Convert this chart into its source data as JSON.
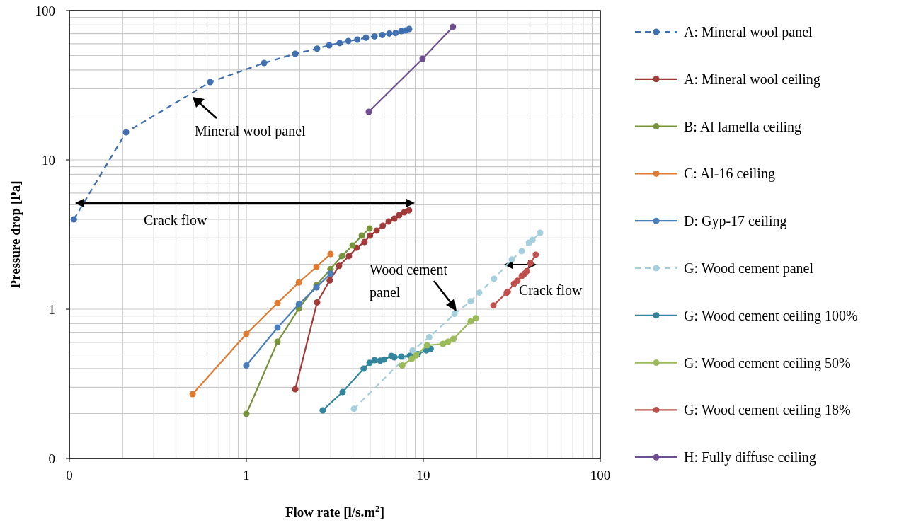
{
  "chart_data": {
    "type": "line",
    "xlabel": "Flow rate [l/s.m$^{2}$]",
    "ylabel": "Pressure drop [Pa]",
    "log": "xy",
    "grid": true,
    "legend": "right",
    "marker": "circle",
    "xlim": [
      0.1,
      100
    ],
    "ylim": [
      0.1,
      100
    ],
    "xticks": [
      {
        "value": 0.1,
        "label": "0"
      },
      1,
      10,
      100
    ],
    "yticks": [
      {
        "value": 0.1,
        "label": "0"
      },
      1,
      10,
      100
    ],
    "series": [
      {
        "name": "A: Mineral wool panel",
        "color": "#3f6fae",
        "line_style": "dashed",
        "x": [
          0.106,
          0.209,
          0.625,
          1.26,
          1.89,
          2.51,
          2.94,
          3.37,
          3.77,
          4.24,
          4.74,
          5.3,
          5.86,
          6.42,
          6.97,
          7.51,
          7.95,
          8.32
        ],
        "values": [
          4.0,
          15.3,
          33.2,
          44.6,
          51.4,
          55.6,
          58.6,
          60.6,
          62.6,
          63.9,
          65.9,
          67.2,
          68.7,
          70.2,
          70.8,
          72.8,
          73.6,
          75.3
        ]
      },
      {
        "name": "A: Mineral wool ceiling",
        "color": "#a33a3a",
        "x": [
          1.89,
          2.51,
          2.96,
          3.34,
          3.8,
          4.2,
          4.65,
          5.0,
          5.45,
          5.9,
          6.37,
          6.86,
          7.3,
          7.8,
          8.3
        ],
        "values": [
          0.291,
          1.11,
          1.56,
          1.95,
          2.27,
          2.58,
          2.82,
          3.11,
          3.36,
          3.62,
          3.87,
          4.04,
          4.27,
          4.46,
          4.6
        ]
      },
      {
        "name": "B: Al lamella ceiling",
        "color": "#77933c",
        "x": [
          1.0,
          1.5,
          1.98,
          2.49,
          2.99,
          3.47,
          3.98,
          4.49,
          4.97
        ],
        "values": [
          0.199,
          0.605,
          1.01,
          1.45,
          1.86,
          2.27,
          2.67,
          3.11,
          3.47
        ]
      },
      {
        "name": "C: Al-16 ceiling",
        "color": "#e07b30",
        "x": [
          0.497,
          1.0,
          1.5,
          1.98,
          2.49,
          2.99
        ],
        "values": [
          0.27,
          0.683,
          1.1,
          1.51,
          1.92,
          2.34
        ]
      },
      {
        "name": "D: Gyp-17 ceiling",
        "color": "#4a7ebb",
        "x": [
          1.0,
          1.5,
          1.98,
          2.49,
          2.99
        ],
        "values": [
          0.42,
          0.753,
          1.08,
          1.4,
          1.73
        ]
      },
      {
        "name": "G: Wood cement panel",
        "color": "#a5cfdd",
        "line_style": "dashed",
        "x": [
          4.05,
          8.7,
          10.8,
          15.0,
          18.5,
          20.7,
          25.1,
          31.6,
          36.0,
          39.5,
          41.4,
          45.7
        ],
        "values": [
          0.215,
          0.53,
          0.65,
          0.93,
          1.13,
          1.29,
          1.6,
          2.15,
          2.45,
          2.79,
          2.91,
          3.25
        ]
      },
      {
        "name": "G: Wood cement ceiling 100%",
        "color": "#31859c",
        "x": [
          2.7,
          3.5,
          4.6,
          4.97,
          5.3,
          5.7,
          6.0,
          6.6,
          6.86,
          7.5,
          8.4,
          9.3,
          10.4,
          11.0
        ],
        "values": [
          0.21,
          0.279,
          0.4,
          0.437,
          0.456,
          0.452,
          0.46,
          0.487,
          0.476,
          0.481,
          0.487,
          0.5,
          0.53,
          0.543
        ]
      },
      {
        "name": "G: Wood cement ceiling 50%",
        "color": "#9bbb59",
        "x": [
          7.6,
          8.6,
          9.1,
          10.5,
          12.9,
          13.8,
          14.8,
          18.5,
          19.8
        ],
        "values": [
          0.42,
          0.466,
          0.49,
          0.573,
          0.586,
          0.605,
          0.632,
          0.83,
          0.87
        ]
      },
      {
        "name": "G: Wood cement ceiling 18%",
        "color": "#c0504d",
        "x": [
          24.9,
          29.6,
          30,
          32.5,
          34.0,
          36.0,
          37.4,
          38.4,
          40.3,
          43.2
        ],
        "values": [
          1.06,
          1.29,
          1.31,
          1.48,
          1.55,
          1.67,
          1.73,
          1.8,
          2.03,
          2.32
        ]
      },
      {
        "name": "H: Fully diffuse ceiling",
        "color": "#6f4e8f",
        "x": [
          4.92,
          9.9,
          14.7
        ],
        "values": [
          21,
          47.6,
          77.8
        ]
      }
    ],
    "annotations": [
      "Mineral wool panel",
      "Crack flow",
      "Wood cement panel",
      "Crack flow"
    ]
  }
}
